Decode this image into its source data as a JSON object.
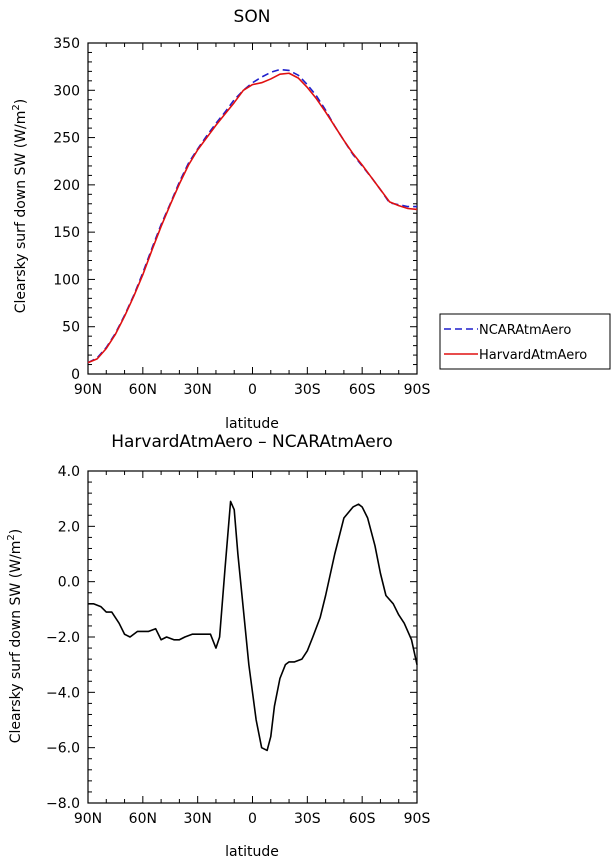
{
  "chart_data": [
    {
      "type": "line",
      "title": "SON",
      "xlabel": "latitude",
      "ylabel": "Clearsky surf down SW (W/m²)",
      "ylabel_main": "Clearsky surf down SW (W/m",
      "ylabel_sup": "2",
      "ylabel_end": ")",
      "xlim": [
        90,
        -90
      ],
      "ylim": [
        0,
        350
      ],
      "xticks": [
        90,
        60,
        30,
        0,
        -30,
        -60,
        -90
      ],
      "xtick_labels": [
        "90N",
        "60N",
        "30N",
        "0",
        "30S",
        "60S",
        "90S"
      ],
      "yticks": [
        0,
        50,
        100,
        150,
        200,
        250,
        300,
        350
      ],
      "ytick_labels": [
        "0",
        "50",
        "100",
        "150",
        "200",
        "250",
        "300",
        "350"
      ],
      "legend": "right",
      "series": [
        {
          "name": "NCARAtmAero",
          "color": "#1f1fcc",
          "dash": "dashed",
          "x": [
            90,
            85,
            80,
            75,
            70,
            65,
            60,
            55,
            50,
            45,
            40,
            35,
            30,
            25,
            20,
            15,
            10,
            5,
            0,
            -5,
            -10,
            -15,
            -20,
            -25,
            -30,
            -35,
            -40,
            -45,
            -50,
            -55,
            -60,
            -65,
            -70,
            -75,
            -80,
            -85,
            -90
          ],
          "y": [
            12,
            17,
            28,
            43,
            62,
            83,
            107,
            133,
            158,
            180,
            203,
            223,
            238,
            252,
            265,
            277,
            290,
            300,
            308,
            314,
            319,
            322,
            321,
            316,
            306,
            294,
            279,
            262,
            247,
            232,
            220,
            208,
            195,
            181,
            179,
            177,
            177
          ]
        },
        {
          "name": "HarvardAtmAero",
          "color": "#e01010",
          "dash": "solid",
          "x": [
            90,
            85,
            80,
            75,
            70,
            65,
            60,
            55,
            50,
            45,
            40,
            35,
            30,
            25,
            20,
            15,
            10,
            5,
            0,
            -5,
            -10,
            -15,
            -20,
            -25,
            -30,
            -35,
            -40,
            -45,
            -50,
            -55,
            -60,
            -65,
            -70,
            -75,
            -80,
            -85,
            -90
          ],
          "y": [
            12,
            16,
            27,
            42,
            61,
            82,
            105,
            131,
            156,
            179,
            201,
            221,
            237,
            250,
            263,
            275,
            287,
            300,
            306,
            308,
            312,
            317,
            318,
            313,
            303,
            291,
            277,
            262,
            247,
            233,
            221,
            208,
            195,
            182,
            178,
            175,
            174
          ]
        }
      ]
    },
    {
      "type": "line",
      "title": "HarvardAtmAero – NCARAtmAero",
      "xlabel": "latitude",
      "ylabel": "Clearsky surf down SW (W/m²)",
      "ylabel_main": "Clearsky surf down SW (W/m",
      "ylabel_sup": "2",
      "ylabel_end": ")",
      "xlim": [
        90,
        -90
      ],
      "ylim": [
        -8,
        4
      ],
      "xticks": [
        90,
        60,
        30,
        0,
        -30,
        -60,
        -90
      ],
      "xtick_labels": [
        "90N",
        "60N",
        "30N",
        "0",
        "30S",
        "60S",
        "90S"
      ],
      "yticks": [
        -8,
        -6,
        -4,
        -2,
        0,
        2,
        4
      ],
      "ytick_labels": [
        "−8.0",
        "−6.0",
        "−4.0",
        "−2.0",
        "0.0",
        "2.0",
        "4.0"
      ],
      "series": [
        {
          "name": "",
          "color": "#000000",
          "dash": "solid",
          "x": [
            90,
            87,
            83,
            80,
            77,
            73,
            70,
            67,
            63,
            60,
            57,
            53,
            50,
            47,
            43,
            40,
            37,
            33,
            30,
            27,
            23,
            20,
            18,
            15,
            12,
            10,
            8,
            5,
            2,
            -2,
            -5,
            -8,
            -10,
            -12,
            -15,
            -18,
            -20,
            -23,
            -27,
            -30,
            -33,
            -37,
            -40,
            -45,
            -50,
            -55,
            -58,
            -60,
            -63,
            -67,
            -70,
            -73,
            -77,
            -80,
            -83,
            -87,
            -90
          ],
          "y": [
            -0.8,
            -0.8,
            -0.9,
            -1.1,
            -1.1,
            -1.5,
            -1.9,
            -2.0,
            -1.8,
            -1.8,
            -1.8,
            -1.7,
            -2.1,
            -2.0,
            -2.1,
            -2.1,
            -2.0,
            -1.9,
            -1.9,
            -1.9,
            -1.9,
            -2.4,
            -2.0,
            0.5,
            2.9,
            2.6,
            1.0,
            -1.0,
            -3.0,
            -5.0,
            -6.0,
            -6.1,
            -5.6,
            -4.5,
            -3.5,
            -3.0,
            -2.9,
            -2.9,
            -2.8,
            -2.5,
            -2.0,
            -1.3,
            -0.5,
            1.0,
            2.3,
            2.7,
            2.8,
            2.7,
            2.3,
            1.3,
            0.3,
            -0.5,
            -0.8,
            -1.2,
            -1.5,
            -2.1,
            -3.0
          ]
        }
      ]
    }
  ]
}
